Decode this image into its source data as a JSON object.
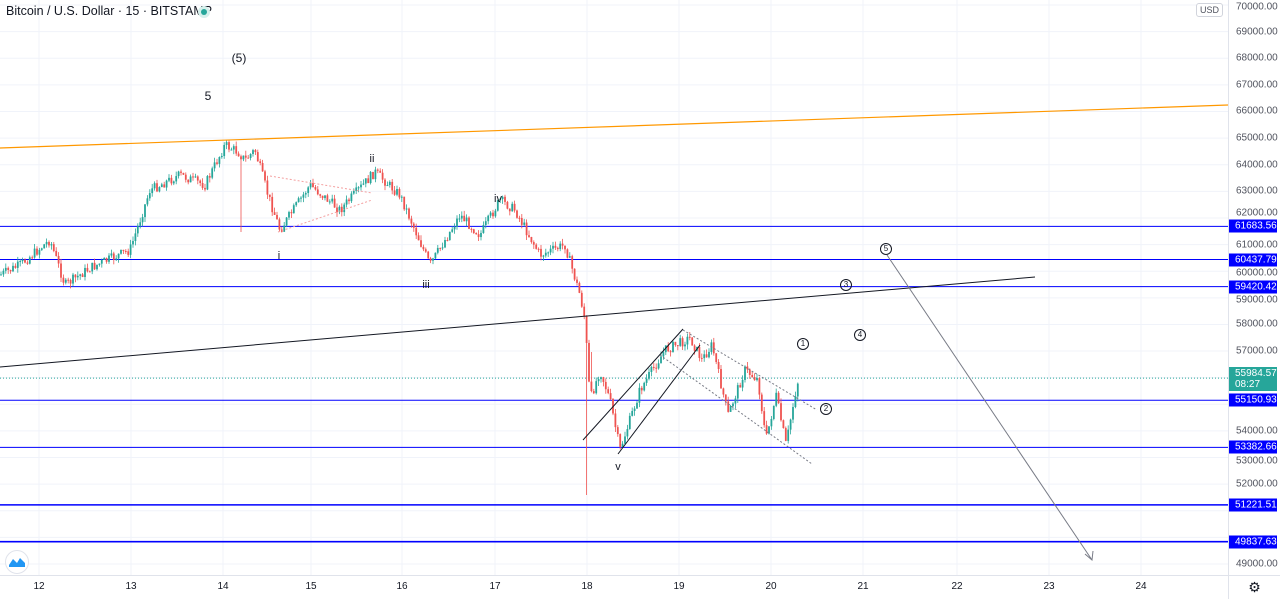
{
  "header": {
    "symbol_title": "Bitcoin / U.S. Dollar · 15 · BITSTAMP",
    "status": "market-open"
  },
  "price_axis": {
    "currency": "USD",
    "ticks": [
      "70000.00",
      "69000.00",
      "68000.00",
      "67000.00",
      "66000.00",
      "65000.00",
      "64000.00",
      "63000.00",
      "62000.00",
      "61000.00",
      "60000.00",
      "59000.00",
      "58000.00",
      "57000.00",
      "54000.00",
      "53000.00",
      "52000.00",
      "49000.00"
    ],
    "levels": [
      {
        "price": "61683.56"
      },
      {
        "price": "60437.79"
      },
      {
        "price": "59420.42"
      },
      {
        "price": "55150.93"
      },
      {
        "price": "53382.66"
      },
      {
        "price": "51221.51"
      },
      {
        "price": "49837.63"
      }
    ],
    "current_price": "55984.57",
    "countdown": "08:27"
  },
  "time_axis": {
    "labels": [
      "12",
      "13",
      "14",
      "15",
      "16",
      "17",
      "18",
      "19",
      "20",
      "21",
      "22",
      "23",
      "24"
    ]
  },
  "wave_labels": {
    "big5": "(5)",
    "five": "5",
    "i": "i",
    "ii": "ii",
    "iii": "iii",
    "iv": "iv",
    "v": "v"
  },
  "circled_labels": [
    "1",
    "2",
    "3",
    "4",
    "5"
  ],
  "colors": {
    "up": "#26a69a",
    "down": "#ef5350",
    "level": "#0000ff",
    "trend_orange": "#ff9800"
  },
  "icons": {
    "settings": "gear-icon",
    "logo": "tradingview-logo-icon"
  }
}
